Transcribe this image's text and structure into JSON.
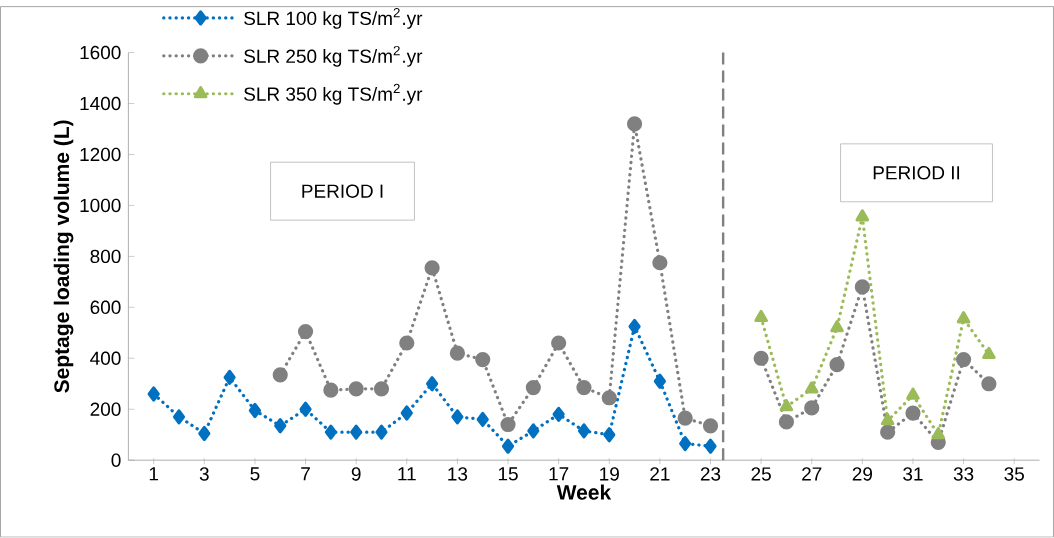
{
  "chart_data": {
    "type": "line",
    "xlabel": "Week",
    "ylabel": "Septage loading volume (L)",
    "x": [
      1,
      2,
      3,
      4,
      5,
      6,
      7,
      8,
      9,
      10,
      11,
      12,
      13,
      14,
      15,
      16,
      17,
      18,
      19,
      20,
      21,
      22,
      23,
      24,
      25,
      26,
      27,
      28,
      29,
      30,
      31,
      32,
      33,
      34
    ],
    "series": [
      {
        "name": "SLR 100 kg TS/m$^{2}$.yr",
        "color": "#0070c0",
        "marker": "diamond",
        "values": [
          260,
          170,
          105,
          325,
          195,
          135,
          200,
          110,
          110,
          110,
          185,
          300,
          170,
          160,
          55,
          115,
          180,
          115,
          100,
          525,
          310,
          65,
          55,
          null,
          null,
          null,
          null,
          null,
          null,
          null,
          null,
          null,
          null,
          null
        ]
      },
      {
        "name": "SLR 250 kg TS/m$^{2}$.yr",
        "color": "#808080",
        "marker": "circle",
        "values": [
          null,
          null,
          null,
          null,
          null,
          335,
          505,
          275,
          280,
          280,
          460,
          755,
          420,
          395,
          140,
          285,
          460,
          285,
          245,
          1320,
          775,
          165,
          135,
          null,
          400,
          150,
          205,
          375,
          680,
          110,
          185,
          70,
          395,
          300
        ]
      },
      {
        "name": "SLR 350 kg TS/m$^{2}$.yr",
        "color": "#9bbb59",
        "marker": "triangle",
        "values": [
          null,
          null,
          null,
          null,
          null,
          null,
          null,
          null,
          null,
          null,
          null,
          null,
          null,
          null,
          null,
          null,
          null,
          null,
          null,
          null,
          null,
          null,
          null,
          null,
          560,
          210,
          280,
          520,
          955,
          155,
          255,
          100,
          555,
          415
        ]
      }
    ],
    "line_style": "dotted",
    "legend": "top left",
    "xlim": [
      0,
      36
    ],
    "xticks": [
      1,
      3,
      5,
      7,
      9,
      11,
      13,
      15,
      17,
      19,
      21,
      23,
      25,
      27,
      29,
      31,
      33,
      35
    ],
    "ylim": [
      0,
      1600
    ],
    "yticks": [
      0,
      200,
      400,
      600,
      800,
      1000,
      1200,
      1400,
      1600
    ],
    "ref_lines": [
      {
        "axis": "x",
        "value": 23.5,
        "color": "#808080",
        "line_style": "dashed"
      }
    ],
    "annotations": [
      "PERIOD I",
      "PERIOD II"
    ]
  }
}
